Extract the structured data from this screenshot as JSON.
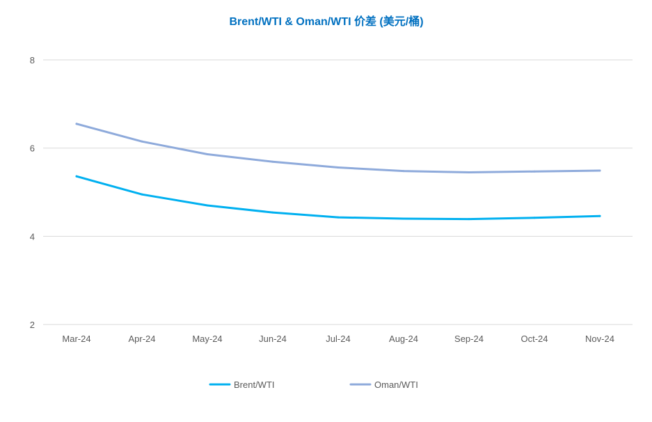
{
  "chart_data": {
    "type": "line",
    "title": "Brent/WTI & Oman/WTI 价差 (美元/桶)",
    "xlabel": "",
    "ylabel": "",
    "categories": [
      "Mar-24",
      "Apr-24",
      "May-24",
      "Jun-24",
      "Jul-24",
      "Aug-24",
      "Sep-24",
      "Oct-24",
      "Nov-24"
    ],
    "ylim": [
      2,
      8
    ],
    "yticks": [
      2,
      4,
      6,
      8
    ],
    "grid": true,
    "legend_position": "bottom",
    "series": [
      {
        "name": "Brent/WTI",
        "color": "#00b0f0",
        "values": [
          5.36,
          4.95,
          4.7,
          4.54,
          4.43,
          4.4,
          4.39,
          4.42,
          4.46
        ]
      },
      {
        "name": "Oman/WTI",
        "color": "#8eaadb",
        "values": [
          6.55,
          6.15,
          5.86,
          5.69,
          5.56,
          5.48,
          5.45,
          5.47,
          5.49
        ]
      }
    ]
  },
  "colors": {
    "title": "#0070c0",
    "text": "#595959",
    "grid": "#d9d9d9"
  }
}
